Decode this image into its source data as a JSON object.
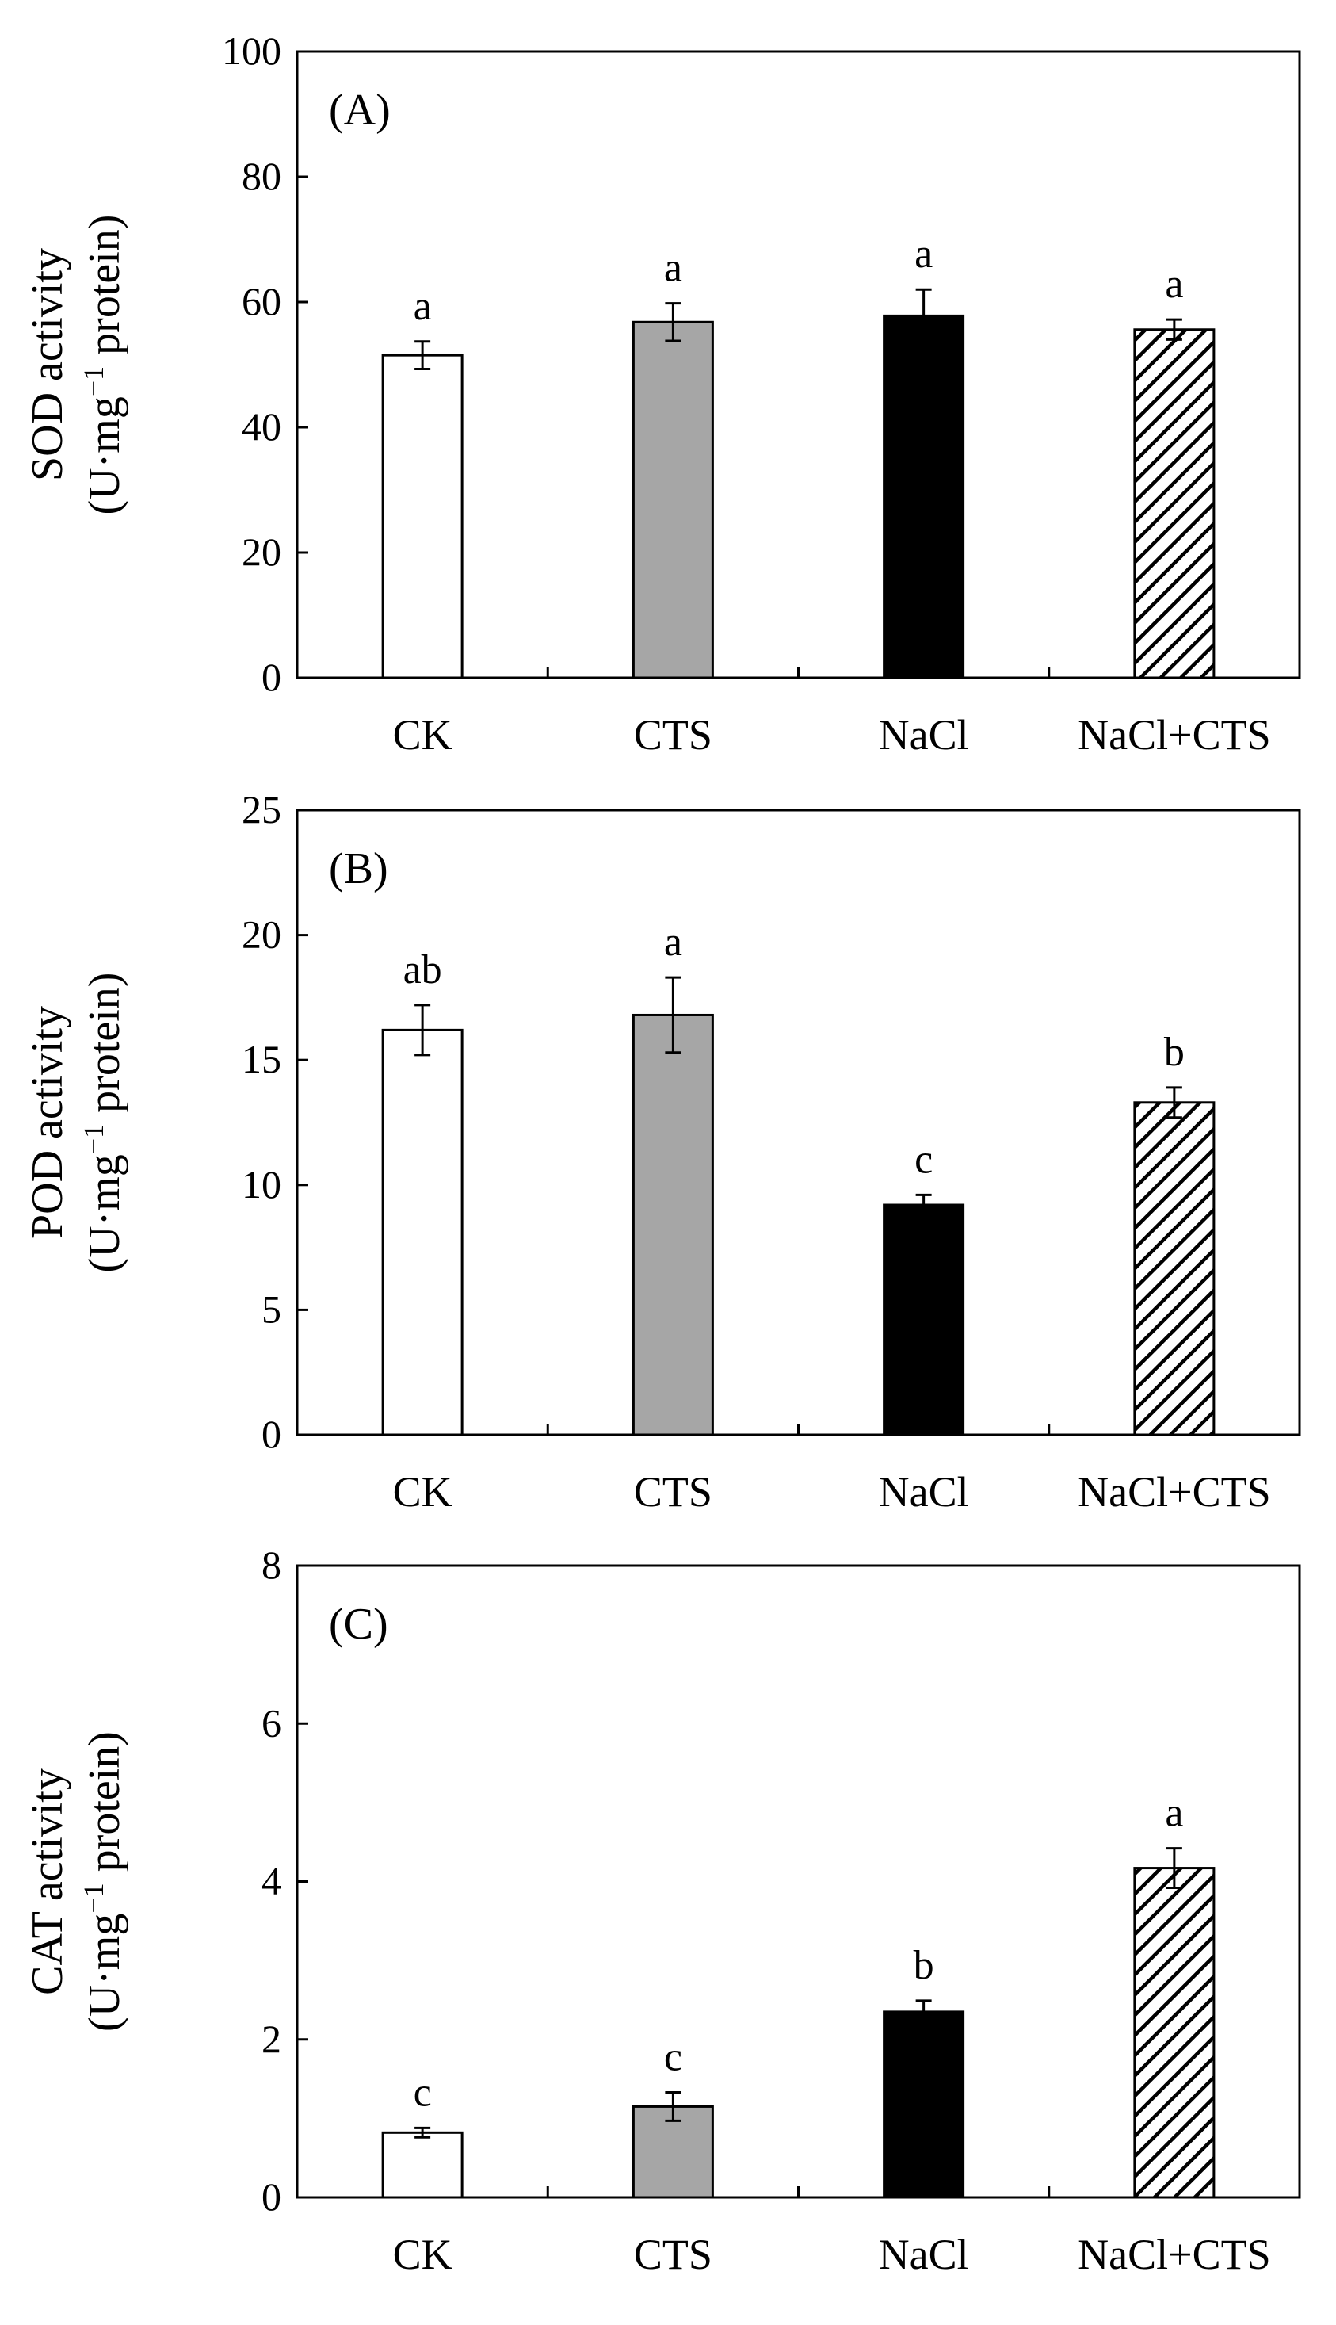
{
  "chart_data": [
    {
      "type": "bar",
      "panel_label": "(A)",
      "title": "",
      "ylabel_line1": "SOD activity",
      "ylabel_line2": {
        "pre": "(U·mg",
        "sup": "−1",
        "post": " protein)"
      },
      "xlabel": "",
      "categories": [
        "CK",
        "CTS",
        "NaCl",
        "NaCl+CTS"
      ],
      "values": [
        51.5,
        56.8,
        57.8,
        55.6
      ],
      "errors": [
        2.2,
        3.0,
        4.2,
        1.6
      ],
      "significance": [
        "a",
        "a",
        "a",
        "a"
      ],
      "ylim": [
        0,
        100
      ],
      "yticks": [
        0,
        20,
        40,
        60,
        80,
        100
      ],
      "grid": false
    },
    {
      "type": "bar",
      "panel_label": "(B)",
      "title": "",
      "ylabel_line1": "POD activity",
      "ylabel_line2": {
        "pre": "(U·mg",
        "sup": "−1",
        "post": " protein)"
      },
      "xlabel": "",
      "categories": [
        "CK",
        "CTS",
        "NaCl",
        "NaCl+CTS"
      ],
      "values": [
        16.2,
        16.8,
        9.2,
        13.3
      ],
      "errors": [
        1.0,
        1.5,
        0.4,
        0.6
      ],
      "significance": [
        "ab",
        "a",
        "c",
        "b"
      ],
      "ylim": [
        0,
        25
      ],
      "yticks": [
        0,
        5,
        10,
        15,
        20,
        25
      ],
      "grid": false
    },
    {
      "type": "bar",
      "panel_label": "(C)",
      "title": "",
      "ylabel_line1": "CAT activity",
      "ylabel_line2": {
        "pre": "(U·mg",
        "sup": "−1",
        "post": " protein)"
      },
      "xlabel": "",
      "categories": [
        "CK",
        "CTS",
        "NaCl",
        "NaCl+CTS"
      ],
      "values": [
        0.82,
        1.15,
        2.35,
        4.17
      ],
      "errors": [
        0.06,
        0.18,
        0.14,
        0.25
      ],
      "significance": [
        "c",
        "c",
        "b",
        "a"
      ],
      "ylim": [
        0,
        8
      ],
      "yticks": [
        0,
        2,
        4,
        6,
        8
      ],
      "grid": false
    }
  ],
  "bar_styles": [
    {
      "category": "CK",
      "fill": "#ffffff",
      "pattern": "none"
    },
    {
      "category": "CTS",
      "fill": "#a6a6a6",
      "pattern": "none"
    },
    {
      "category": "NaCl",
      "fill": "#000000",
      "pattern": "none"
    },
    {
      "category": "NaCl+CTS",
      "fill": "#ffffff",
      "pattern": "diagonal-hatch"
    }
  ],
  "colors": {
    "axis": "#000000",
    "bar_outline": "#000000",
    "hatch": "#000000"
  }
}
